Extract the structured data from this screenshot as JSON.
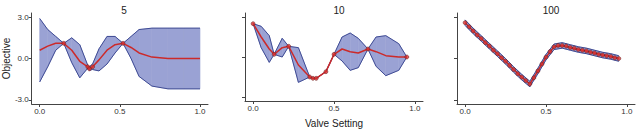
{
  "chart_data": [
    {
      "type": "line",
      "title": "5",
      "ylabel": "Objective",
      "xlim": [
        -0.05,
        1.05
      ],
      "xticks": [
        {
          "value": 0,
          "label": "0.0"
        },
        {
          "value": 0.5,
          "label": "0.5"
        },
        {
          "value": 1,
          "label": "1.0"
        }
      ],
      "ylim": [
        -3.3,
        3.3
      ],
      "yticks": [
        {
          "value": -3,
          "label": "-3.0"
        },
        {
          "value": 0,
          "label": "0.0"
        },
        {
          "value": 3,
          "label": "3.0"
        }
      ],
      "grid": false,
      "series": [
        {
          "type": "band",
          "color": "#9aa2d4",
          "x": [
            0,
            0.05,
            0.1,
            0.15,
            0.2,
            0.25,
            0.3,
            0.31,
            0.33,
            0.37,
            0.42,
            0.47,
            0.52,
            0.57,
            0.62,
            0.7,
            0.8,
            0.9,
            1.0
          ],
          "upper": [
            2.9,
            2.1,
            1.6,
            1.1,
            1.5,
            1.0,
            -0.5,
            -0.6,
            -0.4,
            0.7,
            1.6,
            1.6,
            1.1,
            1.6,
            2.1,
            2.2,
            2.2,
            2.2,
            2.2
          ],
          "lower": [
            -1.7,
            -0.6,
            0.6,
            1.1,
            -0.3,
            -1.4,
            -0.7,
            -0.85,
            -0.8,
            -0.9,
            -0.4,
            0.4,
            1.1,
            0.0,
            -1.3,
            -2.0,
            -2.2,
            -2.2,
            -2.2
          ]
        },
        {
          "type": "line",
          "color": "#cc2a2a",
          "x": [
            0,
            0.05,
            0.1,
            0.15,
            0.2,
            0.25,
            0.3,
            0.31,
            0.33,
            0.37,
            0.42,
            0.47,
            0.52,
            0.57,
            0.62,
            0.7,
            0.8,
            0.9,
            1.0
          ],
          "values": [
            0.6,
            0.9,
            1.1,
            1.1,
            0.6,
            -0.2,
            -0.6,
            -0.75,
            -0.6,
            -0.1,
            0.6,
            1.0,
            1.1,
            0.8,
            0.4,
            0.1,
            0.0,
            0.0,
            0.0
          ]
        },
        {
          "type": "scatter",
          "color": "#d93030",
          "marker": "circle",
          "x": [
            0.15,
            0.3,
            0.31,
            0.33,
            0.52
          ],
          "values": [
            1.1,
            -0.6,
            -0.75,
            -0.6,
            1.1
          ]
        }
      ]
    },
    {
      "type": "line",
      "title": "10",
      "xlabel": "Valve Setting",
      "xlim": [
        -0.05,
        1.05
      ],
      "xticks": [
        {
          "value": 0,
          "label": "0.0"
        },
        {
          "value": 0.5,
          "label": "0.5"
        },
        {
          "value": 1,
          "label": "1.0"
        }
      ],
      "ylim": [
        -3.3,
        3.3
      ],
      "yticks": [
        {
          "value": -3,
          "label": "-3.0"
        },
        {
          "value": 0,
          "label": "0.0"
        },
        {
          "value": 3,
          "label": "3.0"
        }
      ],
      "tick_labels": "x",
      "grid": false,
      "series": [
        {
          "type": "band",
          "color": "#9aa2d4",
          "x": [
            0,
            0.05,
            0.1,
            0.13,
            0.18,
            0.22,
            0.28,
            0.35,
            0.37,
            0.39,
            0.45,
            0.5,
            0.55,
            0.6,
            0.65,
            0.71,
            0.76,
            0.82,
            0.9,
            0.95
          ],
          "upper": [
            2.5,
            2.3,
            1.6,
            0.2,
            1.4,
            0.8,
            0.7,
            -1.5,
            -1.6,
            -1.6,
            -1.1,
            0.2,
            1.5,
            1.8,
            1.4,
            0.6,
            1.5,
            1.6,
            1.0,
            0.0
          ],
          "lower": [
            2.5,
            0.7,
            -0.4,
            0.2,
            0.0,
            0.8,
            -1.9,
            -1.5,
            -1.6,
            -1.6,
            -1.1,
            0.2,
            -0.3,
            -1.0,
            -0.8,
            0.6,
            -0.7,
            -1.4,
            -1.0,
            0.0
          ]
        },
        {
          "type": "line",
          "color": "#cc2a2a",
          "x": [
            0,
            0.05,
            0.1,
            0.13,
            0.18,
            0.22,
            0.28,
            0.35,
            0.37,
            0.39,
            0.45,
            0.5,
            0.55,
            0.6,
            0.65,
            0.71,
            0.76,
            0.82,
            0.9,
            0.95
          ],
          "values": [
            2.5,
            1.5,
            0.6,
            0.2,
            0.7,
            0.8,
            -0.6,
            -1.5,
            -1.6,
            -1.6,
            -1.1,
            0.2,
            0.6,
            0.4,
            0.3,
            0.6,
            0.4,
            0.1,
            0.0,
            0.0
          ]
        },
        {
          "type": "scatter",
          "color": "#d93030",
          "marker": "circle",
          "x": [
            0.0,
            0.13,
            0.22,
            0.35,
            0.37,
            0.39,
            0.45,
            0.5,
            0.71,
            0.95
          ],
          "values": [
            2.5,
            0.2,
            0.8,
            -1.5,
            -1.6,
            -1.6,
            -1.1,
            0.2,
            0.6,
            0.0
          ]
        }
      ]
    },
    {
      "type": "line",
      "title": "100",
      "xlim": [
        -0.05,
        1.05
      ],
      "xticks": [
        {
          "value": 0,
          "label": "0.0"
        },
        {
          "value": 0.5,
          "label": "0.5"
        },
        {
          "value": 1,
          "label": "1.0"
        }
      ],
      "ylim": [
        -3.3,
        3.3
      ],
      "yticks": [
        {
          "value": -3,
          "label": "-3.0"
        },
        {
          "value": 0,
          "label": "0.0"
        },
        {
          "value": 3,
          "label": "3.0"
        }
      ],
      "tick_labels": "x",
      "grid": false,
      "series": [
        {
          "type": "band",
          "color": "#9aa2d4",
          "x": [
            0,
            0.05,
            0.1,
            0.15,
            0.2,
            0.25,
            0.3,
            0.35,
            0.4,
            0.45,
            0.5,
            0.55,
            0.6,
            0.65,
            0.7,
            0.75,
            0.8,
            0.85,
            0.9,
            0.95
          ],
          "upper": [
            2.8,
            2.2,
            1.65,
            1.1,
            0.55,
            0.0,
            -0.6,
            -1.15,
            -1.65,
            -0.7,
            0.3,
            1.05,
            1.15,
            1.0,
            0.85,
            0.75,
            0.6,
            0.45,
            0.35,
            0.2
          ],
          "lower": [
            2.4,
            1.8,
            1.25,
            0.7,
            0.15,
            -0.4,
            -1.0,
            -1.55,
            -2.05,
            -1.1,
            -0.1,
            0.65,
            0.75,
            0.6,
            0.45,
            0.35,
            0.2,
            0.05,
            -0.05,
            -0.2
          ]
        },
        {
          "type": "line",
          "color": "#cc2a2a",
          "x": [
            0,
            0.05,
            0.1,
            0.15,
            0.2,
            0.25,
            0.3,
            0.35,
            0.4,
            0.45,
            0.5,
            0.55,
            0.6,
            0.65,
            0.7,
            0.75,
            0.8,
            0.85,
            0.9,
            0.95
          ],
          "values": [
            2.6,
            2.0,
            1.45,
            0.9,
            0.35,
            -0.2,
            -0.8,
            -1.35,
            -1.85,
            -0.9,
            0.1,
            0.85,
            0.95,
            0.8,
            0.65,
            0.55,
            0.4,
            0.25,
            0.15,
            0.0
          ]
        },
        {
          "type": "scatter",
          "color": "#d93030",
          "marker": "circle",
          "x": [
            0,
            0.025,
            0.05,
            0.075,
            0.1,
            0.125,
            0.15,
            0.175,
            0.2,
            0.225,
            0.25,
            0.275,
            0.3,
            0.325,
            0.35,
            0.375,
            0.4,
            0.425,
            0.45,
            0.475,
            0.5,
            0.525,
            0.55,
            0.575,
            0.6,
            0.625,
            0.65,
            0.675,
            0.7,
            0.725,
            0.75,
            0.775,
            0.8,
            0.825,
            0.85,
            0.875,
            0.9,
            0.925,
            0.95
          ],
          "values": [
            2.6,
            2.3,
            2.0,
            1.7,
            1.45,
            1.15,
            0.9,
            0.6,
            0.35,
            0.05,
            -0.2,
            -0.5,
            -0.8,
            -1.1,
            -1.35,
            -1.6,
            -1.85,
            -1.4,
            -0.9,
            -0.4,
            0.1,
            0.5,
            0.85,
            0.95,
            0.95,
            0.9,
            0.8,
            0.75,
            0.65,
            0.6,
            0.55,
            0.45,
            0.4,
            0.3,
            0.25,
            0.2,
            0.15,
            0.05,
            0.0
          ]
        }
      ]
    }
  ]
}
